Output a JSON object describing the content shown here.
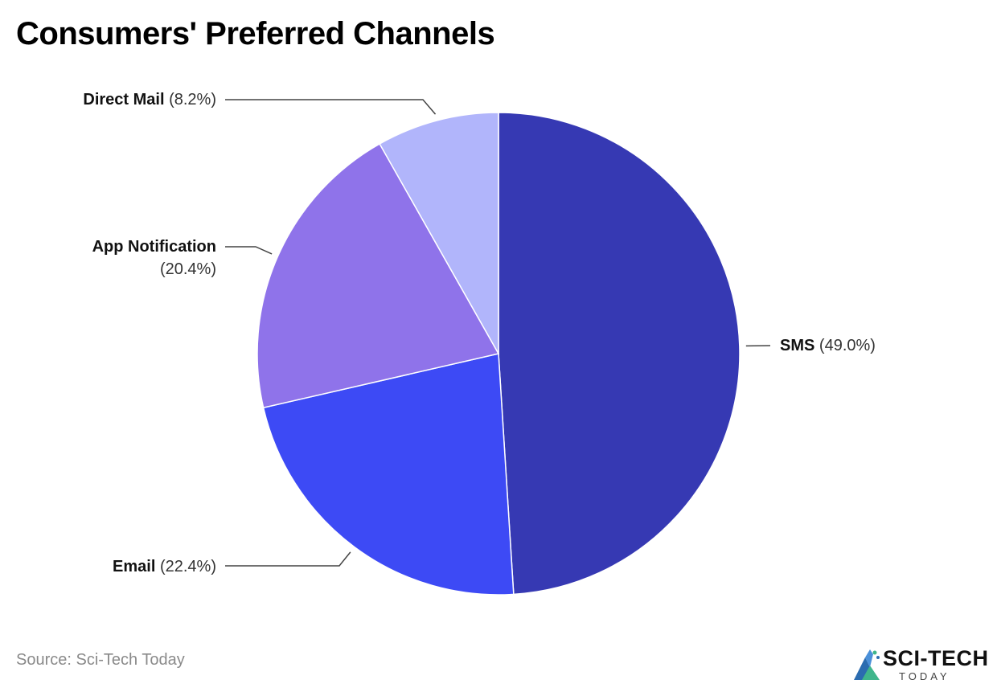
{
  "title": "Consumers' Preferred Channels",
  "source": "Source: Sci-Tech Today",
  "logo": {
    "word": "SCI-TECH",
    "sub": "TODAY",
    "icon": "sci-tech-logo-icon"
  },
  "chart_data": {
    "type": "pie",
    "title": "Consumers' Preferred Channels",
    "slices": [
      {
        "label": "SMS",
        "value": 49.0,
        "value_label": "(49.0%)",
        "color": "#3639b3"
      },
      {
        "label": "Email",
        "value": 22.4,
        "value_label": "(22.4%)",
        "color": "#3d4af5"
      },
      {
        "label": "App Notification",
        "value": 20.4,
        "value_label": "(20.4%)",
        "color": "#8f73ea"
      },
      {
        "label": "Direct Mail",
        "value": 8.2,
        "value_label": "(8.2%)",
        "color": "#b1b5fb"
      }
    ],
    "start_angle": "12 o'clock",
    "direction": "clockwise",
    "legend": "none"
  }
}
